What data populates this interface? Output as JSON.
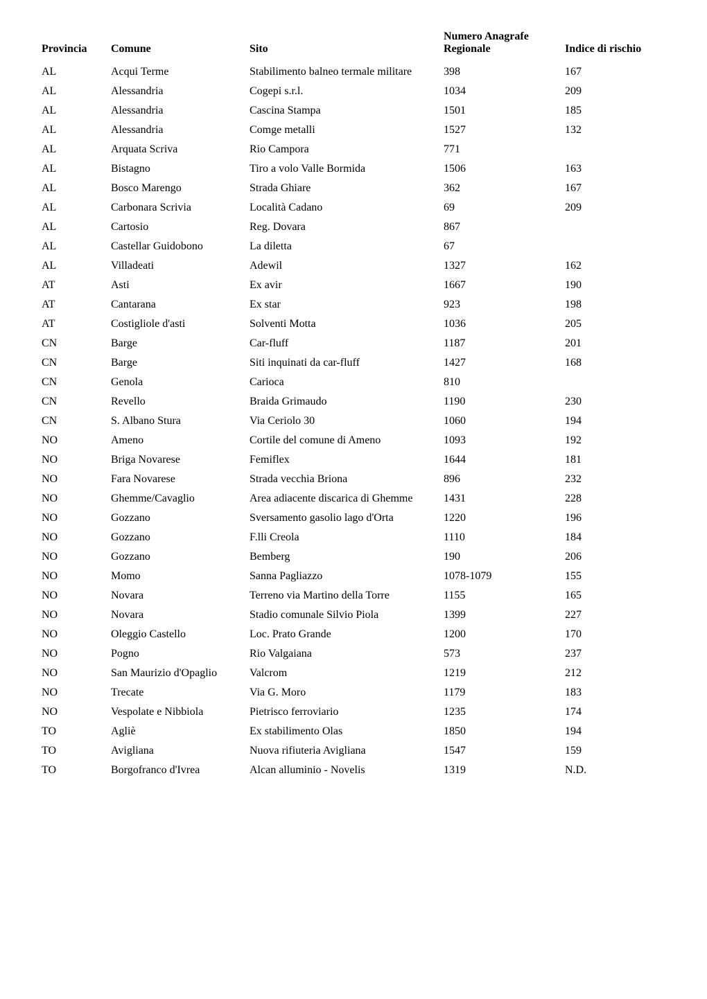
{
  "table": {
    "columns": [
      {
        "label": "Provincia"
      },
      {
        "label": "Comune"
      },
      {
        "label": "Sito"
      },
      {
        "label": "Numero Anagrafe Regionale"
      },
      {
        "label": "Indice di rischio"
      }
    ],
    "rows": [
      {
        "provincia": "AL",
        "comune": "Acqui Terme",
        "sito": "Stabilimento balneo termale militare",
        "registry": "398",
        "rischio": "167"
      },
      {
        "provincia": "AL",
        "comune": "Alessandria",
        "sito": "Cogepi s.r.l.",
        "registry": "1034",
        "rischio": "209"
      },
      {
        "provincia": "AL",
        "comune": "Alessandria",
        "sito": "Cascina Stampa",
        "registry": "1501",
        "rischio": "185"
      },
      {
        "provincia": "AL",
        "comune": "Alessandria",
        "sito": "Comge metalli",
        "registry": "1527",
        "rischio": "132"
      },
      {
        "provincia": "AL",
        "comune": "Arquata Scriva",
        "sito": "Rio Campora",
        "registry": "771",
        "rischio": ""
      },
      {
        "provincia": "AL",
        "comune": "Bistagno",
        "sito": "Tiro a volo Valle Bormida",
        "registry": "1506",
        "rischio": "163"
      },
      {
        "provincia": "AL",
        "comune": "Bosco Marengo",
        "sito": "Strada Ghiare",
        "registry": "362",
        "rischio": "167"
      },
      {
        "provincia": "AL",
        "comune": "Carbonara Scrivia",
        "sito": "Località Cadano",
        "registry": "69",
        "rischio": "209"
      },
      {
        "provincia": "AL",
        "comune": "Cartosio",
        "sito": "Reg. Dovara",
        "registry": "867",
        "rischio": ""
      },
      {
        "provincia": "AL",
        "comune": "Castellar Guidobono",
        "sito": "La diletta",
        "registry": "67",
        "rischio": ""
      },
      {
        "provincia": "AL",
        "comune": "Villadeati",
        "sito": "Adewil",
        "registry": "1327",
        "rischio": "162"
      },
      {
        "provincia": "AT",
        "comune": "Asti",
        "sito": "Ex avir",
        "registry": "1667",
        "rischio": "190"
      },
      {
        "provincia": "AT",
        "comune": "Cantarana",
        "sito": "Ex star",
        "registry": "923",
        "rischio": "198"
      },
      {
        "provincia": "AT",
        "comune": "Costigliole d'asti",
        "sito": "Solventi Motta",
        "registry": "1036",
        "rischio": "205"
      },
      {
        "provincia": "CN",
        "comune": "Barge",
        "sito": "Car-fluff",
        "registry": "1187",
        "rischio": "201"
      },
      {
        "provincia": "CN",
        "comune": "Barge",
        "sito": "Siti inquinati da car-fluff",
        "registry": "1427",
        "rischio": "168"
      },
      {
        "provincia": "CN",
        "comune": "Genola",
        "sito": "Carioca",
        "registry": "810",
        "rischio": ""
      },
      {
        "provincia": "CN",
        "comune": "Revello",
        "sito": "Braida Grimaudo",
        "registry": "1190",
        "rischio": "230"
      },
      {
        "provincia": "CN",
        "comune": "S. Albano Stura",
        "sito": "Via Ceriolo 30",
        "registry": "1060",
        "rischio": "194"
      },
      {
        "provincia": "NO",
        "comune": "Ameno",
        "sito": "Cortile del comune di Ameno",
        "registry": "1093",
        "rischio": "192"
      },
      {
        "provincia": "NO",
        "comune": "Briga Novarese",
        "sito": "Femiflex",
        "registry": "1644",
        "rischio": "181"
      },
      {
        "provincia": "NO",
        "comune": "Fara Novarese",
        "sito": "Strada vecchia Briona",
        "registry": "896",
        "rischio": "232"
      },
      {
        "provincia": "NO",
        "comune": "Ghemme/Cavaglio",
        "sito": "Area adiacente discarica di Ghemme",
        "registry": "1431",
        "rischio": "228"
      },
      {
        "provincia": "NO",
        "comune": "Gozzano",
        "sito": "Sversamento gasolio lago d'Orta",
        "registry": "1220",
        "rischio": "196"
      },
      {
        "provincia": "NO",
        "comune": "Gozzano",
        "sito": "F.lli Creola",
        "registry": "1110",
        "rischio": "184"
      },
      {
        "provincia": "NO",
        "comune": "Gozzano",
        "sito": "Bemberg",
        "registry": "190",
        "rischio": "206"
      },
      {
        "provincia": "NO",
        "comune": "Momo",
        "sito": "Sanna Pagliazzo",
        "registry": "1078-1079",
        "rischio": "155"
      },
      {
        "provincia": "NO",
        "comune": "Novara",
        "sito": "Terreno via Martino della Torre",
        "registry": "1155",
        "rischio": "165"
      },
      {
        "provincia": "NO",
        "comune": "Novara",
        "sito": "Stadio comunale Silvio Piola",
        "registry": "1399",
        "rischio": "227"
      },
      {
        "provincia": "NO",
        "comune": "Oleggio Castello",
        "sito": "Loc. Prato Grande",
        "registry": "1200",
        "rischio": "170"
      },
      {
        "provincia": "NO",
        "comune": "Pogno",
        "sito": "Rio Valgaiana",
        "registry": "573",
        "rischio": "237"
      },
      {
        "provincia": "NO",
        "comune": "San Maurizio d'Opaglio",
        "sito": "Valcrom",
        "registry": "1219",
        "rischio": "212"
      },
      {
        "provincia": "NO",
        "comune": "Trecate",
        "sito": "Via G. Moro",
        "registry": "1179",
        "rischio": "183"
      },
      {
        "provincia": "NO",
        "comune": "Vespolate e Nibbiola",
        "sito": "Pietrisco ferroviario",
        "registry": "1235",
        "rischio": "174"
      },
      {
        "provincia": "TO",
        "comune": "Agliè",
        "sito": "Ex stabilimento Olas",
        "registry": "1850",
        "rischio": "194"
      },
      {
        "provincia": "TO",
        "comune": "Avigliana",
        "sito": "Nuova rifiuteria Avigliana",
        "registry": "1547",
        "rischio": "159"
      },
      {
        "provincia": "TO",
        "comune": "Borgofranco d'Ivrea",
        "sito": "Alcan alluminio - Novelis",
        "registry": "1319",
        "rischio": "N.D."
      }
    ]
  },
  "colors": {
    "background": "#ffffff",
    "text": "#000000"
  },
  "typography": {
    "font_family": "Georgia, 'Times New Roman', serif",
    "font_size_pt": 12,
    "header_weight": "bold"
  }
}
